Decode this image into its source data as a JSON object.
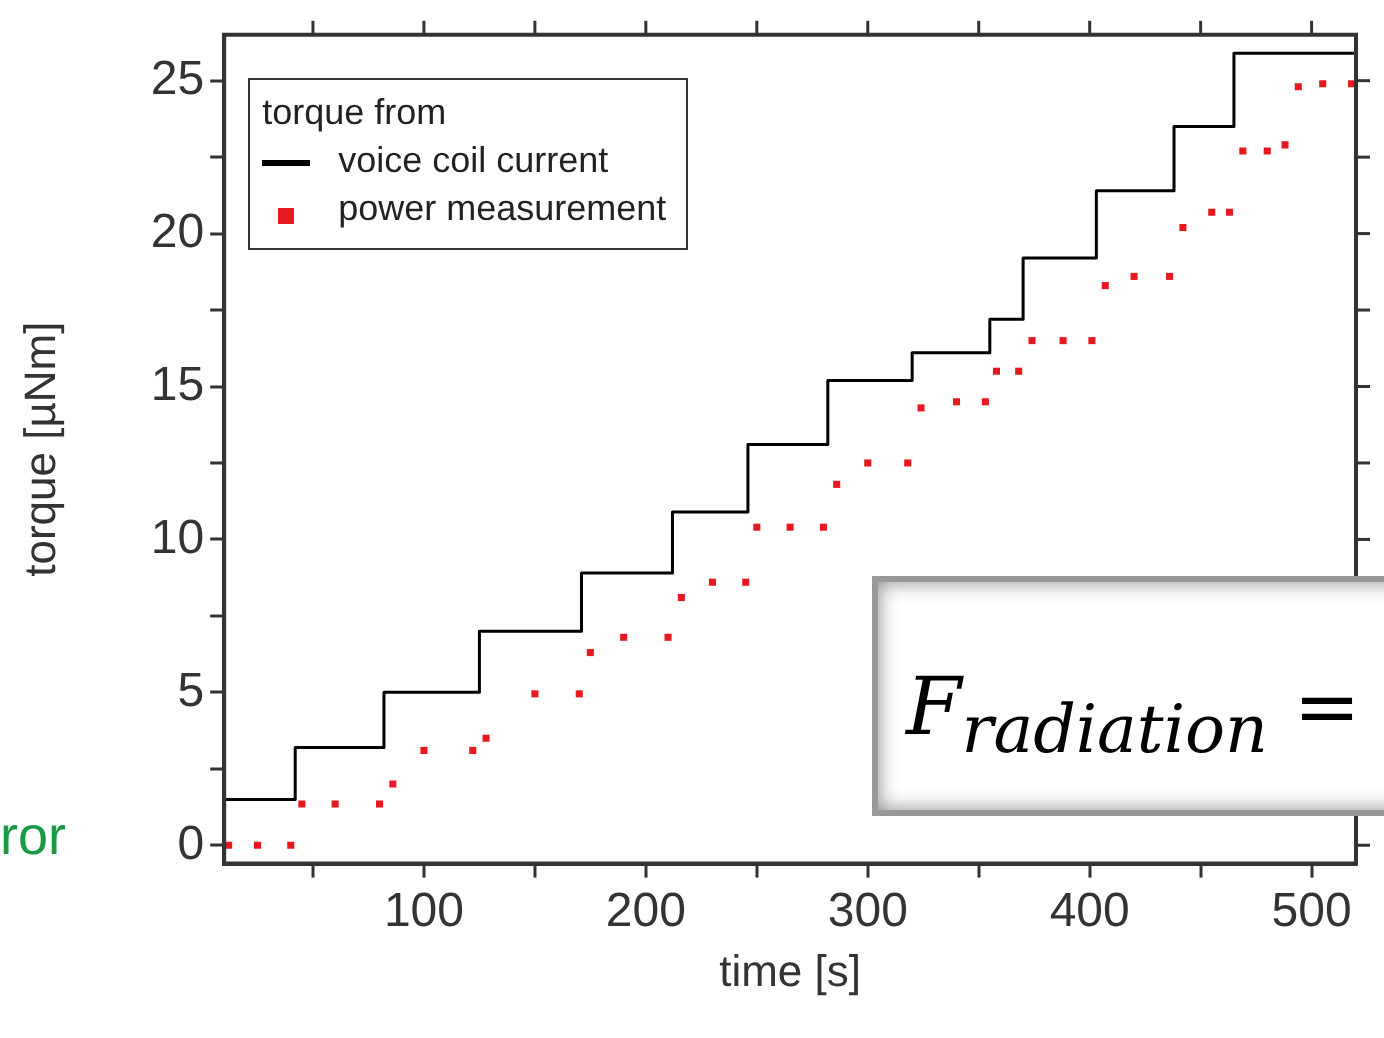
{
  "chart_data": {
    "type": "step",
    "xlabel": "time [s]",
    "ylabel": "torque [µNm]",
    "legend_title": "torque from",
    "legend": "top left",
    "grid": false,
    "xlim": [
      10,
      520
    ],
    "xticks": [
      {
        "value": 50,
        "label": null
      },
      100,
      {
        "value": 150,
        "label": null
      },
      200,
      {
        "value": 250,
        "label": null
      },
      300,
      {
        "value": 350,
        "label": null
      },
      400,
      {
        "value": 450,
        "label": null
      },
      500
    ],
    "ylim": [
      -0.6,
      26.5
    ],
    "yticks": [
      0,
      {
        "value": 2.5,
        "label": null
      },
      5,
      {
        "value": 7.5,
        "label": null
      },
      10,
      {
        "value": 12.5,
        "label": null
      },
      15,
      {
        "value": 17.5,
        "label": null
      },
      20,
      {
        "value": 22.5,
        "label": null
      },
      25
    ],
    "series": [
      {
        "name": "voice coil current",
        "color": "#000000",
        "marker": "none",
        "x": [
          10,
          42,
          82,
          125,
          171,
          212,
          246,
          282,
          320,
          355,
          370,
          403,
          438,
          465,
          490,
          520
        ],
        "values": [
          -0.05,
          1.5,
          3.2,
          5.0,
          7.0,
          8.9,
          10.9,
          13.1,
          15.2,
          16.1,
          17.2,
          19.2,
          21.4,
          23.5,
          25.9,
          25.9
        ]
      },
      {
        "name": "power measurement",
        "type": "scatter",
        "color": "#e8191e",
        "marker": "square",
        "x": [
          12,
          25,
          40,
          45,
          60,
          80,
          86,
          100,
          122,
          128,
          150,
          170,
          175,
          190,
          210,
          216,
          230,
          245,
          250,
          265,
          280,
          286,
          300,
          318,
          324,
          340,
          353,
          358,
          368,
          374,
          388,
          401,
          407,
          420,
          436,
          442,
          455,
          463,
          469,
          480,
          488,
          494,
          505,
          518
        ],
        "values": [
          0,
          0,
          0,
          1.35,
          1.35,
          1.35,
          2.0,
          3.1,
          3.1,
          3.5,
          4.95,
          4.95,
          6.3,
          6.8,
          6.8,
          8.1,
          8.6,
          8.6,
          10.4,
          10.4,
          10.4,
          11.8,
          12.5,
          12.5,
          14.3,
          14.5,
          14.5,
          15.5,
          15.5,
          16.5,
          16.5,
          16.5,
          18.3,
          18.6,
          18.6,
          20.2,
          20.7,
          20.7,
          22.7,
          22.7,
          22.9,
          24.8,
          24.9,
          24.9
        ]
      }
    ],
    "annotations": [
      "ror",
      "F$_{radiation}$ ="
    ]
  }
}
